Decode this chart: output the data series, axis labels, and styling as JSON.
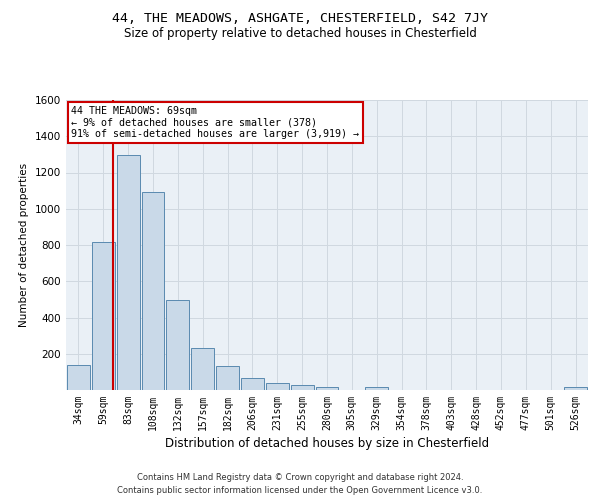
{
  "title1": "44, THE MEADOWS, ASHGATE, CHESTERFIELD, S42 7JY",
  "title2": "Size of property relative to detached houses in Chesterfield",
  "xlabel": "Distribution of detached houses by size in Chesterfield",
  "ylabel": "Number of detached properties",
  "footer1": "Contains HM Land Registry data © Crown copyright and database right 2024.",
  "footer2": "Contains public sector information licensed under the Open Government Licence v3.0.",
  "bin_labels": [
    "34sqm",
    "59sqm",
    "83sqm",
    "108sqm",
    "132sqm",
    "157sqm",
    "182sqm",
    "206sqm",
    "231sqm",
    "255sqm",
    "280sqm",
    "305sqm",
    "329sqm",
    "354sqm",
    "378sqm",
    "403sqm",
    "428sqm",
    "452sqm",
    "477sqm",
    "501sqm",
    "526sqm"
  ],
  "bar_values": [
    140,
    815,
    1295,
    1090,
    495,
    230,
    130,
    65,
    38,
    27,
    15,
    0,
    18,
    0,
    0,
    0,
    0,
    0,
    0,
    0,
    15
  ],
  "bar_color": "#c9d9e8",
  "bar_edge_color": "#5a8ab0",
  "grid_color": "#d0d8e0",
  "background_color": "#eaf0f6",
  "annotation_line1": "44 THE MEADOWS: 69sqm",
  "annotation_line2": "← 9% of detached houses are smaller (378)",
  "annotation_line3": "91% of semi-detached houses are larger (3,919) →",
  "annotation_box_color": "#ffffff",
  "annotation_box_edge": "#cc0000",
  "vline_color": "#cc0000",
  "ylim": [
    0,
    1600
  ],
  "yticks": [
    0,
    200,
    400,
    600,
    800,
    1000,
    1200,
    1400,
    1600
  ],
  "title1_fontsize": 9.5,
  "title2_fontsize": 8.5,
  "xlabel_fontsize": 8.5,
  "ylabel_fontsize": 7.5,
  "tick_fontsize": 7,
  "footer_fontsize": 6.0,
  "ann_fontsize": 7.2
}
